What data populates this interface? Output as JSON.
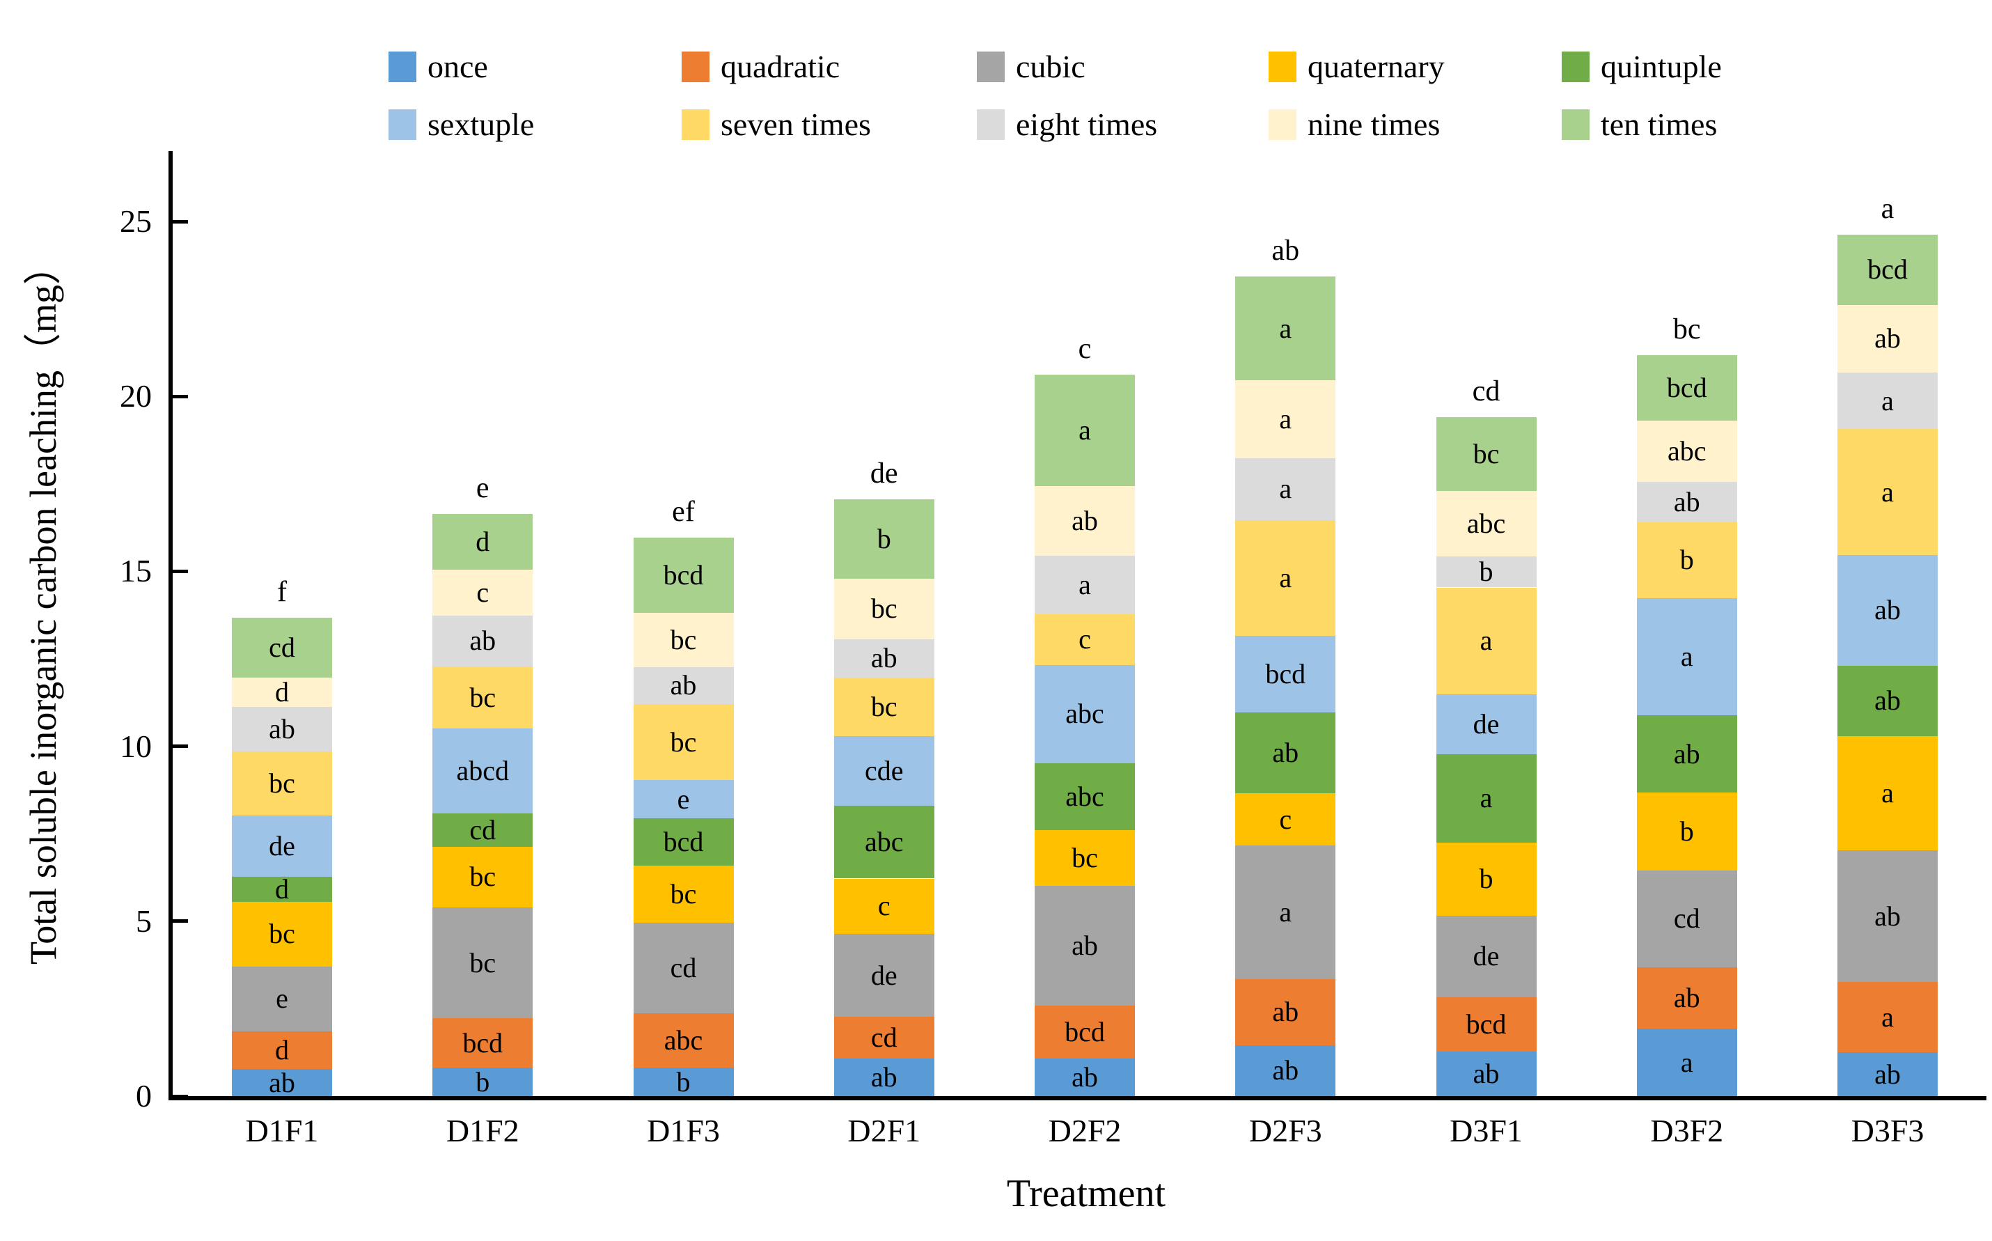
{
  "chart_data": {
    "type": "bar",
    "stacked": true,
    "title": "",
    "xlabel": "Treatment",
    "ylabel": "Total soluble inorganic carbon leaching（mg）",
    "ylim": [
      0,
      25
    ],
    "ytick_labels": [
      "0",
      "5",
      "10",
      "15",
      "20",
      "25"
    ],
    "grid": false,
    "legend_position": "top-two-rows",
    "categories": [
      "D1F1",
      "D1F2",
      "D1F3",
      "D2F1",
      "D2F2",
      "D2F3",
      "D3F1",
      "D3F2",
      "D3F3"
    ],
    "bar_total_letters": [
      "f",
      "e",
      "ef",
      "de",
      "c",
      "ab",
      "cd",
      "bc",
      "a"
    ],
    "series": [
      {
        "name": "once",
        "color": "#5B9BD5",
        "values": [
          0.77,
          0.81,
          0.81,
          1.07,
          1.07,
          1.46,
          1.27,
          1.93,
          1.25
        ],
        "labels": [
          "ab",
          "b",
          "b",
          "ab",
          "ab",
          "ab",
          "ab",
          "a",
          "ab"
        ]
      },
      {
        "name": "quadratic",
        "color": "#ED7D31",
        "values": [
          1.08,
          1.41,
          1.55,
          1.2,
          1.52,
          1.88,
          1.56,
          1.76,
          2.01
        ],
        "labels": [
          "d",
          "bcd",
          "abc",
          "cd",
          "bcd",
          "ab",
          "bcd",
          "ab",
          "a"
        ]
      },
      {
        "name": "cubic",
        "color": "#A5A5A5",
        "values": [
          1.86,
          3.18,
          2.59,
          2.36,
          3.42,
          3.82,
          2.33,
          2.76,
          3.77
        ],
        "labels": [
          "e",
          "bc",
          "cd",
          "de",
          "ab",
          "a",
          "de",
          "cd",
          "ab"
        ]
      },
      {
        "name": "quaternary",
        "color": "#FFC000",
        "values": [
          1.84,
          1.72,
          1.64,
          1.59,
          1.6,
          1.49,
          2.09,
          2.22,
          3.27
        ],
        "labels": [
          "bc",
          "bc",
          "bc",
          "c",
          "bc",
          "c",
          "b",
          "b",
          "a"
        ]
      },
      {
        "name": "quintuple",
        "color": "#70AD47",
        "values": [
          0.71,
          0.97,
          1.35,
          2.08,
          1.91,
          2.31,
          2.53,
          2.22,
          2.01
        ],
        "labels": [
          "d",
          "cd",
          "bcd",
          "abc",
          "abc",
          "ab",
          "a",
          "ab",
          "ab"
        ]
      },
      {
        "name": "sextuple",
        "color": "#9DC3E6",
        "values": [
          1.76,
          2.41,
          1.09,
          2.0,
          2.81,
          2.19,
          1.7,
          3.34,
          3.15
        ],
        "labels": [
          "de",
          "abcd",
          "e",
          "cde",
          "abc",
          "bcd",
          "de",
          "a",
          "ab"
        ]
      },
      {
        "name": "seven times",
        "color": "#FFD966",
        "values": [
          1.84,
          1.78,
          2.18,
          1.66,
          1.45,
          3.32,
          3.06,
          2.18,
          3.6
        ],
        "labels": [
          "bc",
          "bc",
          "bc",
          "bc",
          "c",
          "a",
          "a",
          "b",
          "a"
        ]
      },
      {
        "name": "eight times",
        "color": "#DBDBDB",
        "values": [
          1.26,
          1.46,
          1.06,
          1.1,
          1.67,
          1.76,
          0.89,
          1.14,
          1.62
        ],
        "labels": [
          "ab",
          "ab",
          "ab",
          "ab",
          "a",
          "a",
          "b",
          "ab",
          "a"
        ]
      },
      {
        "name": "nine times",
        "color": "#FFF2CC",
        "values": [
          0.84,
          1.31,
          1.54,
          1.73,
          1.98,
          2.23,
          1.87,
          1.76,
          1.94
        ],
        "labels": [
          "d",
          "c",
          "bc",
          "bc",
          "ab",
          "a",
          "abc",
          "abc",
          "ab"
        ]
      },
      {
        "name": "ten times",
        "color": "#A9D18E",
        "values": [
          1.72,
          1.6,
          2.15,
          2.27,
          3.2,
          2.96,
          2.11,
          1.87,
          2.01
        ],
        "labels": [
          "cd",
          "d",
          "bcd",
          "b",
          "a",
          "a",
          "bc",
          "bcd",
          "bcd"
        ]
      }
    ]
  }
}
